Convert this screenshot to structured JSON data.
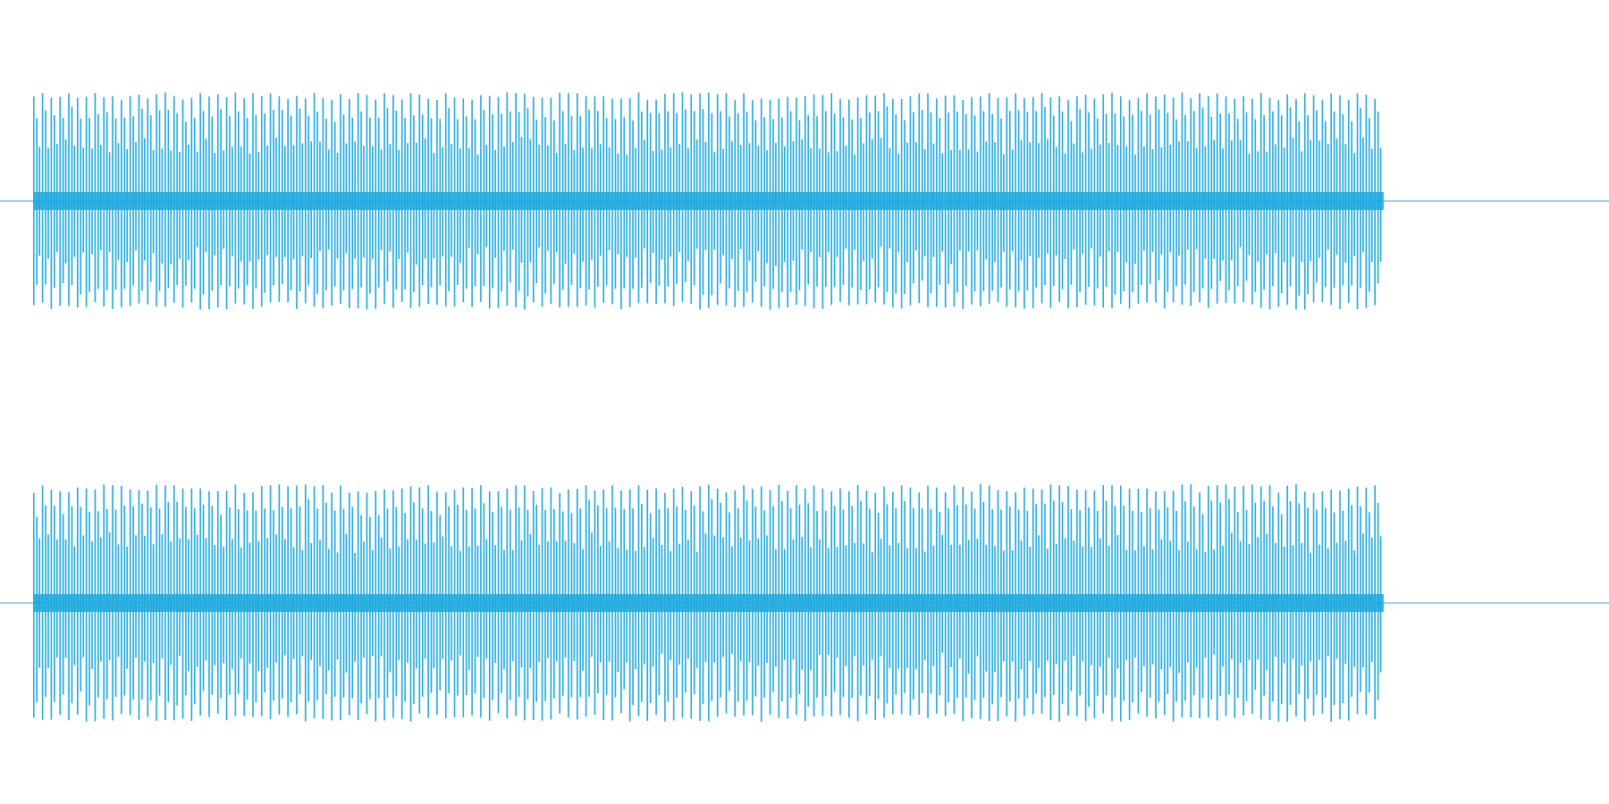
{
  "chart_data": {
    "type": "line",
    "title": "",
    "xlabel": "",
    "ylabel": "",
    "grid": false,
    "legend": "none",
    "color": "#1ba8de",
    "xlim": [
      0,
      1
    ],
    "ylim": [
      -1,
      1
    ],
    "signal_extent": [
      0.021,
      0.86
    ],
    "pulse_count": 154,
    "series": [
      {
        "channel": 1,
        "peak_positive": 0.95,
        "peak_negative": -0.95,
        "baseline": 0.0
      },
      {
        "channel": 2,
        "peak_positive": 0.95,
        "peak_negative": -0.95,
        "baseline": 0.0
      }
    ]
  }
}
